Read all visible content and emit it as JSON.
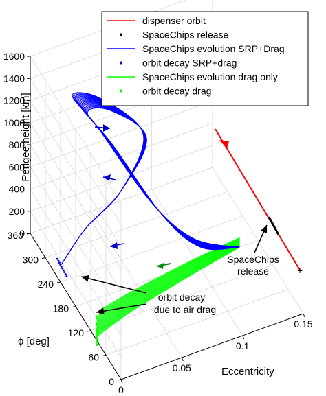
{
  "chart_data": {
    "type": "line",
    "projection": "3d",
    "title": "",
    "axes": {
      "x": {
        "label": "Eccentricity",
        "ticks": [
          "0",
          "0.05",
          "0.1",
          "0.15"
        ],
        "range": [
          0,
          0.15
        ]
      },
      "y": {
        "label": "ϕ [deg]",
        "ticks": [
          "0",
          "60",
          "120",
          "180",
          "240",
          "300",
          "360"
        ],
        "range": [
          0,
          360
        ]
      },
      "z": {
        "label": "Perigee height [km]",
        "ticks": [
          "0",
          "200",
          "400",
          "600",
          "800",
          "1000",
          "1200",
          "1400",
          "1600"
        ],
        "range": [
          0,
          1600
        ]
      }
    },
    "grid": true,
    "legend": {
      "position": "top-right",
      "entries": [
        {
          "label": "dispenser orbit",
          "color": "#ff0000",
          "marker": "line"
        },
        {
          "label": "SpaceChips release",
          "color": "#000000",
          "marker": "dot"
        },
        {
          "label": "SpaceChips evolution SRP+Drag",
          "color": "#0000ff",
          "marker": "line"
        },
        {
          "label": "orbit decay SRP+drag",
          "color": "#0000ff",
          "marker": "dot"
        },
        {
          "label": "SpaceChips evolution drag only",
          "color": "#00ff00",
          "marker": "line"
        },
        {
          "label": "orbit decay drag",
          "color": "#00ff00",
          "marker": "dot"
        }
      ]
    },
    "series": [
      {
        "name": "dispenser orbit",
        "color": "#ff0000",
        "points": [
          {
            "e": 0.152,
            "phi": 180,
            "h": 1000
          },
          {
            "e": 0.138,
            "phi": 180,
            "h": 0
          }
        ]
      },
      {
        "name": "SpaceChips release",
        "color": "#000000",
        "points": [
          {
            "e": 0.138,
            "phi": 180,
            "h": 0
          },
          {
            "e": 0.135,
            "phi": 180,
            "h": 10
          }
        ]
      },
      {
        "name": "SpaceChips evolution SRP+Drag",
        "color": "#0000ff",
        "points": [
          {
            "e": 0.135,
            "phi": 180,
            "h": 0
          },
          {
            "e": 0.1,
            "phi": 200,
            "h": 150
          },
          {
            "e": 0.07,
            "phi": 230,
            "h": 500
          },
          {
            "e": 0.035,
            "phi": 275,
            "h": 1150
          },
          {
            "e": 0.02,
            "phi": 300,
            "h": 1400
          },
          {
            "e": 0.045,
            "phi": 305,
            "h": 1250
          },
          {
            "e": 0.08,
            "phi": 300,
            "h": 800
          },
          {
            "e": 0.06,
            "phi": 290,
            "h": 400
          },
          {
            "e": 0.03,
            "phi": 285,
            "h": 200
          },
          {
            "e": 0.008,
            "phi": 275,
            "h": 0
          }
        ]
      },
      {
        "name": "SpaceChips evolution drag only",
        "color": "#00ff00",
        "points": [
          {
            "e": 0.135,
            "phi": 180,
            "h": 0
          },
          {
            "e": 0.09,
            "phi": 168,
            "h": 0
          },
          {
            "e": 0.04,
            "phi": 150,
            "h": 0
          },
          {
            "e": 0.01,
            "phi": 135,
            "h": 0
          }
        ]
      }
    ],
    "annotations": [
      {
        "text": [
          "SpaceChips",
          "release"
        ]
      },
      {
        "text": [
          "orbit decay",
          "due to air drag"
        ]
      }
    ]
  }
}
